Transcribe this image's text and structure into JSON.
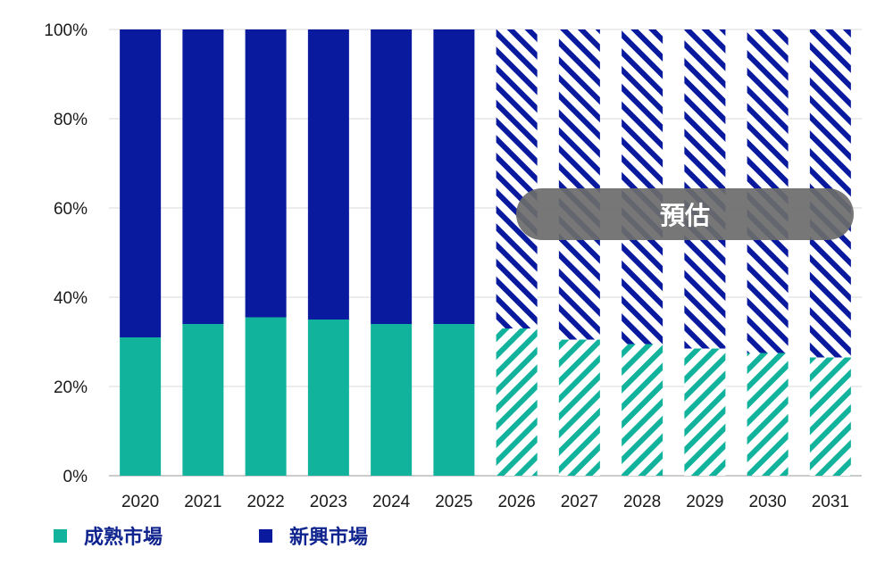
{
  "chart_data": {
    "type": "bar",
    "stacked": true,
    "categories": [
      "2020",
      "2021",
      "2022",
      "2023",
      "2024",
      "2025",
      "2026",
      "2027",
      "2028",
      "2029",
      "2030",
      "2031"
    ],
    "series": [
      {
        "name": "成熟市場",
        "color": "#12b39c",
        "values": [
          31,
          34,
          35.5,
          35,
          34,
          34,
          33,
          30.5,
          29.5,
          28.5,
          27.5,
          26.5
        ]
      },
      {
        "name": "新興市場",
        "color": "#0a1a9e",
        "values": [
          69,
          66,
          64.5,
          65,
          66,
          66,
          67,
          69.5,
          70.5,
          71.5,
          72.5,
          73.5
        ]
      }
    ],
    "ylim": [
      0,
      100
    ],
    "yticks": [
      "0%",
      "20%",
      "40%",
      "60%",
      "80%",
      "100%"
    ],
    "grid": true,
    "forecast_from": "2026",
    "forecast_style": "hatched",
    "annotation": "預估",
    "legend_position": "bottom-left"
  }
}
